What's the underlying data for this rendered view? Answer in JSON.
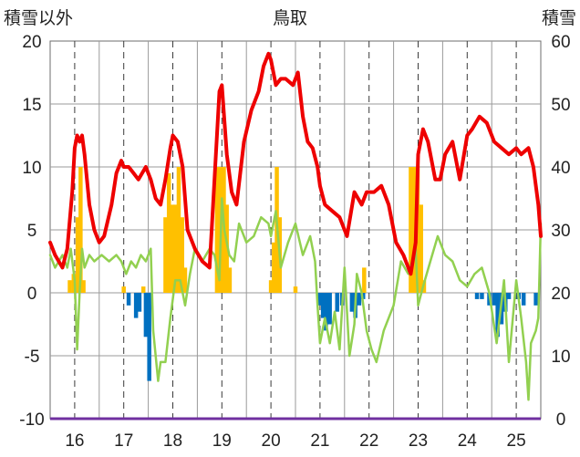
{
  "chart_data": {
    "type": "line",
    "title": "鳥取",
    "left_axis_label": "積雪以外",
    "right_axis_label": "積雪",
    "ylim_left": [
      -10,
      20
    ],
    "ylim_right": [
      0,
      60
    ],
    "left_ticks": [
      "20",
      "15",
      "10",
      "5",
      "0",
      "-5",
      "-10"
    ],
    "right_ticks": [
      "60",
      "50",
      "40",
      "30",
      "20",
      "10",
      "0"
    ],
    "x_ticks": [
      "16",
      "17",
      "18",
      "19",
      "20",
      "21",
      "22",
      "23",
      "24",
      "25"
    ],
    "xlim": [
      15.5,
      25.5
    ],
    "grid": true,
    "colors": {
      "red_line": "#ee0000",
      "green_line": "#92d050",
      "positive_bars": "#ffc000",
      "negative_bars": "#0070c0",
      "baseline": "#7030a0"
    },
    "series": [
      {
        "key": "red",
        "x": [
          15.5,
          15.6,
          15.75,
          15.85,
          15.95,
          16.0,
          16.05,
          16.1,
          16.15,
          16.2,
          16.3,
          16.4,
          16.5,
          16.6,
          16.75,
          16.85,
          16.95,
          17.0,
          17.1,
          17.2,
          17.3,
          17.45,
          17.55,
          17.65,
          17.75,
          17.85,
          17.95,
          18.0,
          18.1,
          18.2,
          18.3,
          18.45,
          18.6,
          18.75,
          18.85,
          18.95,
          19.0,
          19.1,
          19.2,
          19.3,
          19.45,
          19.6,
          19.75,
          19.85,
          19.95,
          20.0,
          20.1,
          20.2,
          20.3,
          20.45,
          20.55,
          20.65,
          20.75,
          20.85,
          20.95,
          21.0,
          21.1,
          21.25,
          21.4,
          21.55,
          21.7,
          21.85,
          21.95,
          22.1,
          22.25,
          22.4,
          22.55,
          22.7,
          22.85,
          22.95,
          23.0,
          23.1,
          23.2,
          23.35,
          23.45,
          23.55,
          23.7,
          23.85,
          24.0,
          24.1,
          24.25,
          24.4,
          24.55,
          24.7,
          24.85,
          25.0,
          25.1,
          25.25,
          25.35,
          25.45,
          25.5
        ],
        "y": [
          4.0,
          3.0,
          2.0,
          3.5,
          8.0,
          11.5,
          12.5,
          12.0,
          12.5,
          11.0,
          7.0,
          5.0,
          4.0,
          4.5,
          7.0,
          9.5,
          10.5,
          10.0,
          10.0,
          9.5,
          9.0,
          10.0,
          9.0,
          7.5,
          7.0,
          9.0,
          11.5,
          12.5,
          12.0,
          10.0,
          5.0,
          3.5,
          2.5,
          2.0,
          9.0,
          16.0,
          16.5,
          11.0,
          8.0,
          7.0,
          12.0,
          14.5,
          16.0,
          18.0,
          19.0,
          18.5,
          16.5,
          17.0,
          17.0,
          16.5,
          17.5,
          14.0,
          12.0,
          11.5,
          10.0,
          8.5,
          7.0,
          6.5,
          6.0,
          4.5,
          8.0,
          7.0,
          8.0,
          8.0,
          8.5,
          7.0,
          4.0,
          3.0,
          1.5,
          4.0,
          11.0,
          13.0,
          12.0,
          9.0,
          9.0,
          11.0,
          12.0,
          9.0,
          12.5,
          13.0,
          14.0,
          13.5,
          12.0,
          11.5,
          11.0,
          11.5,
          11.0,
          11.5,
          10.0,
          7.0,
          4.5
        ]
      },
      {
        "key": "green",
        "x": [
          15.5,
          15.6,
          15.75,
          15.85,
          15.92,
          16.0,
          16.05,
          16.1,
          16.15,
          16.2,
          16.3,
          16.4,
          16.55,
          16.7,
          16.85,
          16.95,
          17.05,
          17.15,
          17.25,
          17.35,
          17.45,
          17.55,
          17.6,
          17.7,
          17.75,
          17.85,
          17.95,
          18.05,
          18.15,
          18.25,
          18.35,
          18.45,
          18.6,
          18.75,
          18.85,
          18.95,
          19.0,
          19.05,
          19.15,
          19.25,
          19.35,
          19.5,
          19.65,
          19.8,
          19.95,
          20.0,
          20.1,
          20.2,
          20.35,
          20.5,
          20.65,
          20.8,
          20.9,
          20.95,
          21.0,
          21.1,
          21.2,
          21.3,
          21.4,
          21.5,
          21.6,
          21.7,
          21.75,
          21.85,
          21.95,
          22.05,
          22.15,
          22.3,
          22.5,
          22.65,
          22.8,
          22.95,
          23.0,
          23.1,
          23.25,
          23.4,
          23.55,
          23.7,
          23.85,
          24.0,
          24.15,
          24.3,
          24.45,
          24.6,
          24.75,
          24.85,
          25.0,
          25.1,
          25.2,
          25.25,
          25.3,
          25.35,
          25.4,
          25.45,
          25.5
        ],
        "y": [
          3.0,
          2.0,
          3.0,
          2.0,
          3.5,
          1.0,
          -4.5,
          0.0,
          3.5,
          2.0,
          3.0,
          2.5,
          3.0,
          2.5,
          3.0,
          2.5,
          1.5,
          2.5,
          2.0,
          3.0,
          2.5,
          3.5,
          -3.0,
          -7.0,
          -5.5,
          -5.5,
          -2.0,
          1.0,
          1.0,
          -1.0,
          1.5,
          3.5,
          2.5,
          3.5,
          3.0,
          1.0,
          7.5,
          5.0,
          3.0,
          2.5,
          5.5,
          4.0,
          4.5,
          6.0,
          5.5,
          4.5,
          6.5,
          2.0,
          4.0,
          5.5,
          3.0,
          4.5,
          2.5,
          -1.0,
          -4.0,
          -2.0,
          -4.0,
          -1.5,
          -4.5,
          2.0,
          -5.0,
          -2.5,
          1.5,
          0.0,
          -3.0,
          -4.5,
          -5.5,
          -3.0,
          -1.0,
          2.5,
          1.5,
          3.5,
          -1.0,
          0.5,
          2.5,
          4.5,
          3.0,
          2.5,
          1.0,
          0.5,
          1.5,
          2.0,
          0.0,
          -4.0,
          1.0,
          -5.5,
          1.0,
          -2.0,
          -5.5,
          -8.5,
          -4.0,
          -3.5,
          -3.0,
          -2.0,
          5.5
        ]
      }
    ],
    "bars_positive": {
      "x": [
        15.9,
        15.98,
        16.06,
        16.12,
        16.18,
        17.0,
        17.4,
        17.85,
        17.92,
        17.99,
        18.06,
        18.12,
        18.19,
        18.25,
        18.9,
        18.97,
        19.04,
        19.1,
        19.16,
        20.0,
        20.06,
        20.12,
        20.18,
        20.5,
        21.9,
        22.85,
        22.92,
        22.99,
        23.06,
        23.12
      ],
      "y": [
        1.0,
        1.5,
        6.0,
        10.0,
        1.0,
        0.5,
        0.5,
        6.0,
        9.5,
        7.0,
        7.0,
        10.0,
        6.0,
        2.0,
        10.0,
        10.0,
        10.0,
        7.0,
        2.0,
        1.0,
        4.0,
        10.0,
        6.0,
        0.5,
        2.0,
        10.0,
        10.0,
        10.0,
        7.0,
        1.0
      ]
    },
    "bars_negative": {
      "x": [
        17.1,
        17.25,
        17.32,
        17.45,
        17.52,
        21.0,
        21.06,
        21.12,
        21.2,
        21.35,
        21.45,
        21.65,
        21.72,
        21.8,
        21.88,
        24.2,
        24.3,
        24.45,
        24.55,
        24.62,
        24.7,
        24.78,
        24.85,
        25.05,
        25.15,
        25.4
      ],
      "y": [
        -1.0,
        -2.0,
        -1.5,
        -3.5,
        -7.0,
        -1.0,
        -2.0,
        -3.0,
        -2.5,
        -1.5,
        -1.0,
        -1.5,
        -2.0,
        -1.0,
        -0.5,
        -0.5,
        -0.5,
        -1.0,
        -1.0,
        -3.5,
        -2.5,
        -1.5,
        -0.5,
        -0.5,
        -1.0,
        -1.0
      ]
    }
  }
}
